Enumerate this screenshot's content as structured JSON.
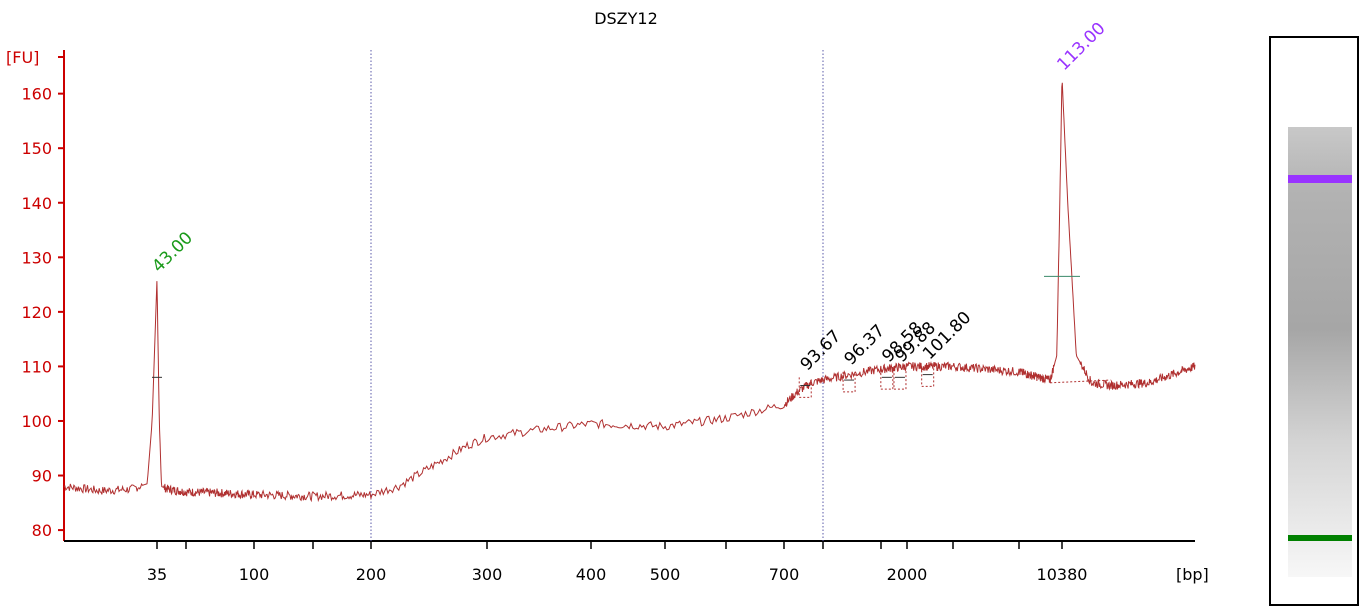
{
  "chart_data": {
    "type": "line",
    "title": "DSZY12",
    "ylabel": "[FU]",
    "xlabel": "[bp]",
    "y_ticks": [
      80,
      90,
      100,
      110,
      120,
      130,
      140,
      150,
      160
    ],
    "ylim": [
      78,
      168
    ],
    "x_tick_labels": [
      "35",
      "100",
      "200",
      "300",
      "400",
      "500",
      "700",
      "2000",
      "10380"
    ],
    "x_tick_positions": [
      35,
      100,
      200,
      300,
      400,
      500,
      700,
      2000,
      10380
    ],
    "x_extra_tick_marks": [
      50,
      150,
      600,
      1000,
      1500,
      3000,
      5000
    ],
    "reference_lines_bp": [
      200,
      1000
    ],
    "grid": false,
    "trace_color": "#b03030",
    "series": [
      {
        "values_x": [
          20,
          25,
          30,
          33,
          34,
          35,
          36,
          37,
          40,
          50,
          70,
          100,
          150,
          200,
          220,
          250,
          280,
          300,
          350,
          400,
          500,
          600,
          700,
          800,
          900,
          1000,
          1200,
          1500,
          2000,
          3000,
          5000,
          7000,
          8500,
          9500,
          10000,
          10380,
          11000,
          12000,
          14000,
          17000,
          25000,
          40000
        ],
        "values_y": [
          88,
          87.2,
          87.5,
          88.5,
          100,
          126,
          100,
          88,
          87.5,
          87,
          86.8,
          86.5,
          86.2,
          86.5,
          88,
          92,
          95.5,
          97,
          98.5,
          99.5,
          99,
          100.5,
          103,
          105.5,
          107,
          107.5,
          108.5,
          109.5,
          110,
          110,
          109,
          108,
          107.5,
          112,
          140,
          163,
          140,
          112,
          107,
          106.5,
          107,
          110
        ]
      }
    ],
    "peaks": [
      {
        "label": "43.00",
        "x": 35,
        "y": 126,
        "color": "#1a9a1a"
      },
      {
        "label": "93.67",
        "x": 850,
        "y": 108,
        "color": "#000000"
      },
      {
        "label": "96.37",
        "x": 1200,
        "y": 109,
        "color": "#000000"
      },
      {
        "label": "98.58",
        "x": 1600,
        "y": 109.5,
        "color": "#000000"
      },
      {
        "label": "99.88",
        "x": 1850,
        "y": 109.5,
        "color": "#000000"
      },
      {
        "label": "101.80",
        "x": 2400,
        "y": 110,
        "color": "#000000"
      },
      {
        "label": "113.00",
        "x": 10380,
        "y": 163,
        "color": "#9933ff"
      }
    ]
  },
  "gel_lane": {
    "bands": [
      {
        "name": "upper-marker",
        "color": "#9933ff"
      },
      {
        "name": "lower-marker",
        "color": "#008000"
      }
    ]
  }
}
